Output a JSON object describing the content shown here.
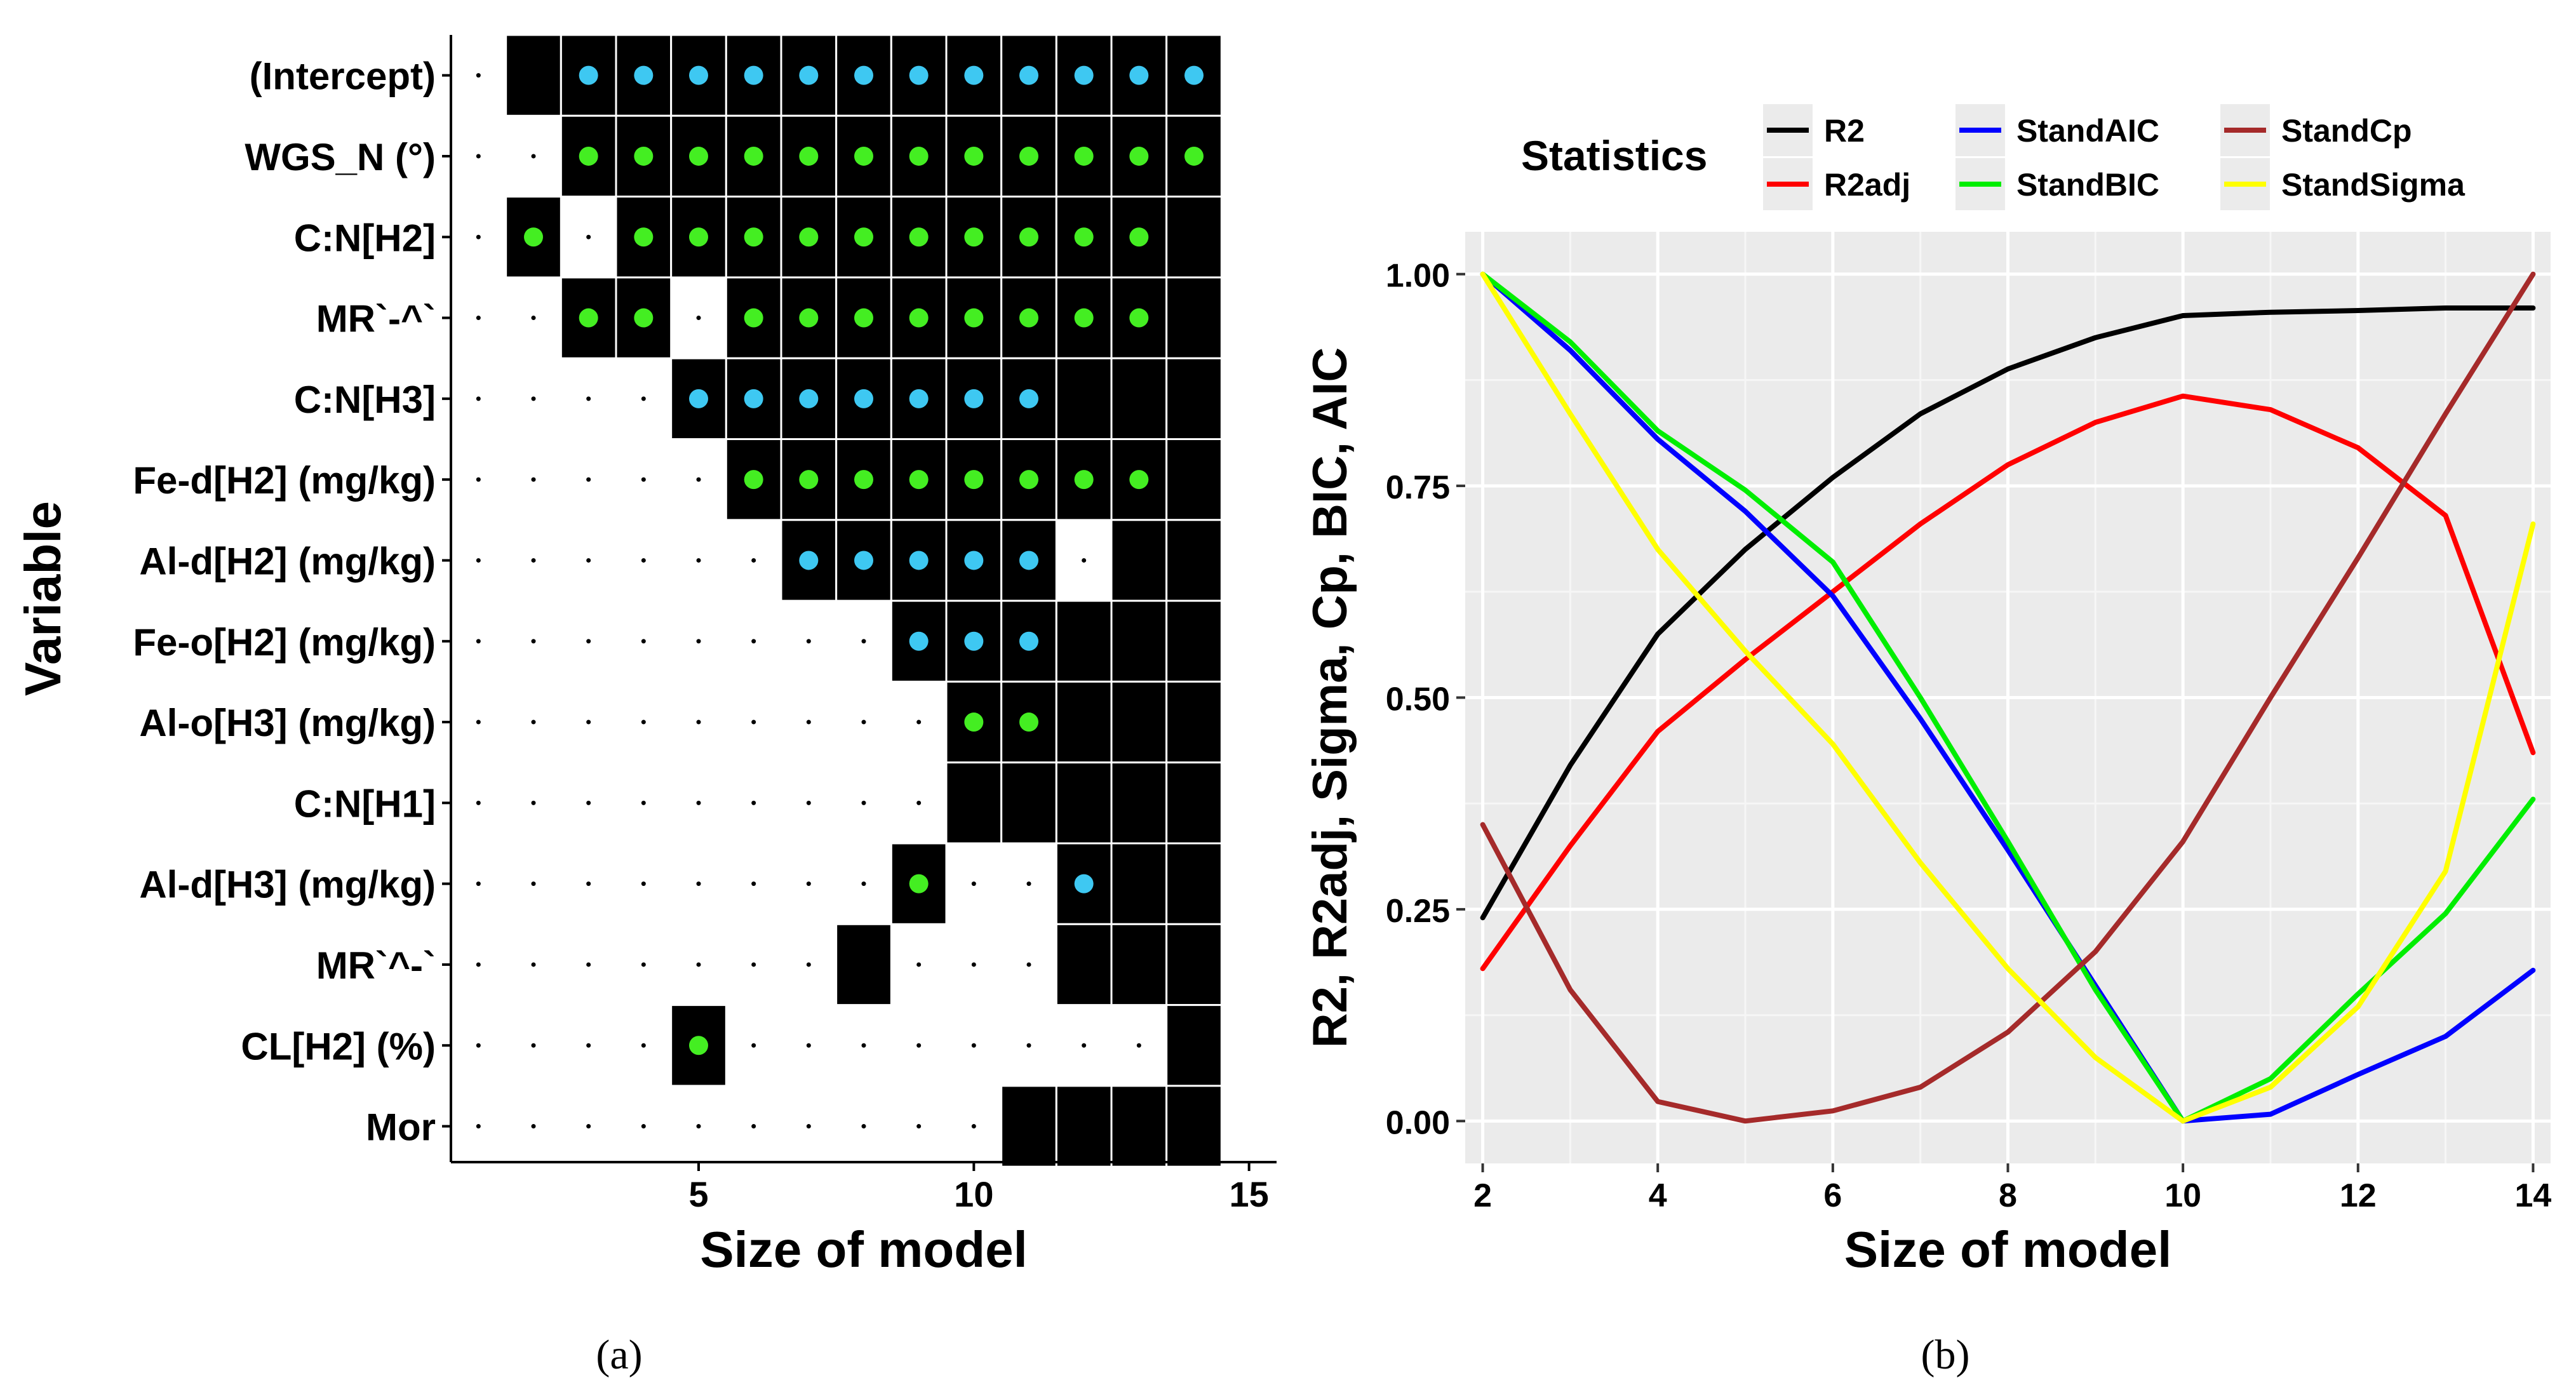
{
  "chart_data": [
    {
      "type": "heatmap",
      "panel_label": "(a)",
      "xlabel": "Size of model",
      "ylabel": "Variable",
      "xlim": [
        0.5,
        15.5
      ],
      "x_ticks": [
        5,
        10,
        15
      ],
      "variables": [
        "(Intercept)",
        "WGS_N (°)",
        "C:N[H2]",
        "MR`-^`",
        "C:N[H3]",
        "Fe-d[H2] (mg/kg)",
        "Al-d[H2] (mg/kg)",
        "Fe-o[H2] (mg/kg)",
        "Al-o[H3] (mg/kg)",
        "C:N[H1]",
        "Al-d[H3] (mg/kg)",
        "MR`^-`",
        "CL[H2] (%)",
        "Mor"
      ],
      "included": [
        [
          2,
          3,
          4,
          5,
          6,
          7,
          8,
          9,
          10,
          11,
          12,
          13,
          14
        ],
        [
          3,
          4,
          5,
          6,
          7,
          8,
          9,
          10,
          11,
          12,
          13,
          14
        ],
        [
          2,
          4,
          5,
          6,
          7,
          8,
          9,
          10,
          11,
          12,
          13,
          14
        ],
        [
          3,
          4,
          6,
          7,
          8,
          9,
          10,
          11,
          12,
          13,
          14
        ],
        [
          5,
          6,
          7,
          8,
          9,
          10,
          11,
          12,
          13,
          14
        ],
        [
          6,
          7,
          8,
          9,
          10,
          11,
          12,
          13,
          14
        ],
        [
          7,
          8,
          9,
          10,
          11,
          13,
          14
        ],
        [
          9,
          10,
          11,
          12,
          13,
          14
        ],
        [
          10,
          11,
          12,
          13,
          14
        ],
        [
          10,
          11,
          12,
          13,
          14
        ],
        [
          9,
          12,
          13,
          14
        ],
        [
          8,
          12,
          13,
          14
        ],
        [
          5,
          14
        ],
        [
          11,
          12,
          13,
          14
        ]
      ],
      "marked": [
        [
          3,
          4,
          5,
          6,
          7,
          8,
          9,
          10,
          11,
          12,
          13,
          14
        ],
        [
          3,
          4,
          5,
          6,
          7,
          8,
          9,
          10,
          11,
          12,
          13,
          14
        ],
        [
          2,
          4,
          5,
          6,
          7,
          8,
          9,
          10,
          11,
          12,
          13
        ],
        [
          3,
          4,
          6,
          7,
          8,
          9,
          10,
          11,
          12,
          13
        ],
        [
          5,
          6,
          7,
          8,
          9,
          10,
          11
        ],
        [
          6,
          7,
          8,
          9,
          10,
          11,
          12,
          13
        ],
        [
          7,
          8,
          9,
          10,
          11
        ],
        [
          9,
          10,
          11
        ],
        [
          10,
          11
        ],
        [],
        [
          9,
          12
        ],
        [],
        [
          5
        ],
        []
      ],
      "marker_color": [
        "#3ec8f2",
        "#44ee22",
        "#44ee22",
        "#44ee22",
        "#3ec8f2",
        "#44ee22",
        "#3ec8f2",
        "#3ec8f2",
        "#44ee22",
        "#44ee22",
        "#44ee22",
        "#44ee22",
        "#44ee22",
        "#44ee22"
      ],
      "marker_color_overrides": [
        {
          "row": 10,
          "x": 12,
          "color": "#3ec8f2"
        }
      ],
      "dot_columns": [
        1,
        14
      ],
      "cell_color": "#000000"
    },
    {
      "type": "line",
      "panel_label": "(b)",
      "xlabel": "Size of model",
      "ylabel": "R2, R2adj, Sigma, Cp, BIC, AIC",
      "x": [
        2,
        3,
        4,
        5,
        6,
        7,
        8,
        9,
        10,
        11,
        12,
        13,
        14
      ],
      "xlim": [
        1.8,
        14.2
      ],
      "ylim": [
        -0.05,
        1.05
      ],
      "x_ticks": [
        2,
        4,
        6,
        8,
        10,
        12,
        14
      ],
      "y_ticks": [
        0.0,
        0.25,
        0.5,
        0.75,
        1.0
      ],
      "y_tick_labels": [
        "0.00",
        "0.25",
        "0.50",
        "0.75",
        "1.00"
      ],
      "legend_title": "Statistics",
      "legend_position": "top",
      "grid": true,
      "panel_bg": "#ebebeb",
      "series": [
        {
          "name": "R2",
          "color": "#000000",
          "values": [
            0.24,
            0.42,
            0.575,
            0.675,
            0.76,
            0.835,
            0.888,
            0.925,
            0.951,
            0.955,
            0.957,
            0.96,
            0.96
          ]
        },
        {
          "name": "R2adj",
          "color": "#ff0000",
          "values": [
            0.18,
            0.325,
            0.46,
            0.545,
            0.625,
            0.705,
            0.775,
            0.825,
            0.856,
            0.84,
            0.795,
            0.715,
            0.435
          ]
        },
        {
          "name": "StandAIC",
          "color": "#0000ff",
          "values": [
            1.0,
            0.91,
            0.805,
            0.72,
            0.62,
            0.475,
            0.32,
            0.16,
            0.0,
            0.008,
            0.055,
            0.1,
            0.178
          ]
        },
        {
          "name": "StandBIC",
          "color": "#00ee00",
          "values": [
            1.0,
            0.92,
            0.815,
            0.745,
            0.66,
            0.5,
            0.33,
            0.155,
            0.0,
            0.05,
            0.15,
            0.245,
            0.38
          ]
        },
        {
          "name": "StandCp",
          "color": "#a52a2a",
          "values": [
            0.35,
            0.155,
            0.023,
            0.0,
            0.012,
            0.04,
            0.105,
            0.2,
            0.33,
            0.5,
            0.665,
            0.835,
            1.0
          ]
        },
        {
          "name": "StandSigma",
          "color": "#ffff00",
          "values": [
            1.0,
            0.835,
            0.675,
            0.555,
            0.445,
            0.305,
            0.18,
            0.075,
            0.0,
            0.04,
            0.135,
            0.295,
            0.705
          ]
        }
      ]
    }
  ]
}
